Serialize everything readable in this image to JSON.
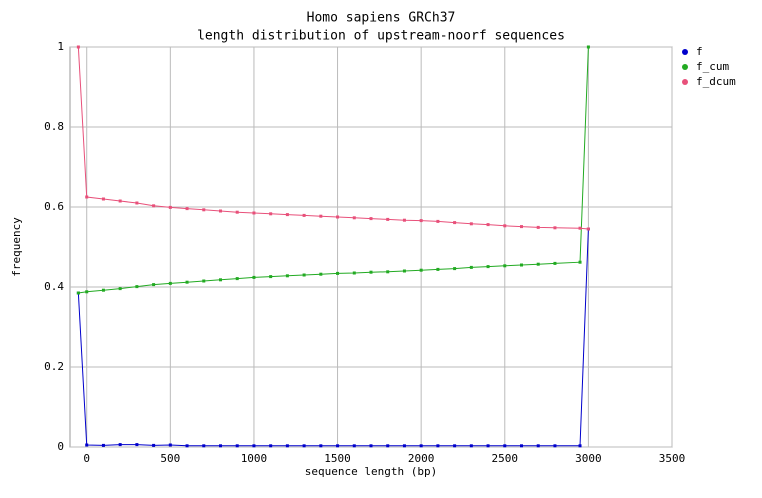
{
  "chart_data": {
    "type": "line",
    "title": "Homo sapiens GRCh37",
    "subtitle": "length distribution of upstream-noorf sequences",
    "x_label": "sequence length (bp)",
    "y_label": "frequency",
    "x": [
      -50,
      0,
      100,
      200,
      300,
      400,
      500,
      600,
      700,
      800,
      900,
      1000,
      1100,
      1200,
      1300,
      1400,
      1500,
      1600,
      1700,
      1800,
      1900,
      2000,
      2100,
      2200,
      2300,
      2400,
      2500,
      2600,
      2700,
      2800,
      2950,
      3000
    ],
    "series": [
      {
        "name": "f",
        "color": "#0000cc",
        "values": [
          0.385,
          0.005,
          0.004,
          0.006,
          0.006,
          0.004,
          0.005,
          0.003,
          0.003,
          0.003,
          0.003,
          0.003,
          0.003,
          0.003,
          0.003,
          0.003,
          0.003,
          0.003,
          0.003,
          0.003,
          0.003,
          0.003,
          0.003,
          0.003,
          0.003,
          0.003,
          0.003,
          0.003,
          0.003,
          0.003,
          0.003,
          0.545
        ]
      },
      {
        "name": "f_cum",
        "color": "#22aa22",
        "values": [
          0.385,
          0.388,
          0.392,
          0.396,
          0.401,
          0.406,
          0.409,
          0.412,
          0.415,
          0.418,
          0.421,
          0.424,
          0.426,
          0.428,
          0.43,
          0.432,
          0.434,
          0.435,
          0.437,
          0.438,
          0.44,
          0.442,
          0.444,
          0.446,
          0.449,
          0.451,
          0.453,
          0.455,
          0.457,
          0.459,
          0.462,
          1.0
        ]
      },
      {
        "name": "f_dcum",
        "color": "#e8507a",
        "values": [
          1.0,
          0.625,
          0.62,
          0.615,
          0.61,
          0.603,
          0.599,
          0.596,
          0.593,
          0.59,
          0.587,
          0.585,
          0.583,
          0.581,
          0.579,
          0.577,
          0.575,
          0.573,
          0.571,
          0.569,
          0.567,
          0.566,
          0.564,
          0.561,
          0.558,
          0.556,
          0.553,
          0.551,
          0.549,
          0.548,
          0.547,
          0.545
        ]
      }
    ],
    "xlim": [
      -100,
      3500
    ],
    "xticks": [
      0,
      500,
      1000,
      1500,
      2000,
      2500,
      3000,
      3500
    ],
    "ylim": [
      0,
      1
    ],
    "yticks": [
      0,
      0.2,
      0.4,
      0.6,
      0.8,
      1
    ],
    "grid": true,
    "legend": "right"
  }
}
